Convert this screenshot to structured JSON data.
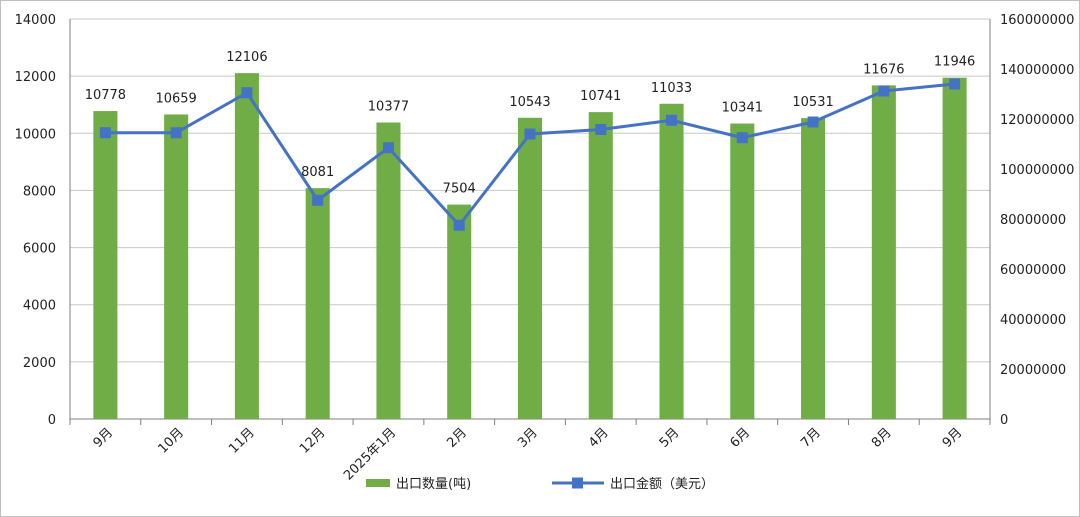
{
  "chart_data": {
    "type": "bar",
    "categories": [
      "9月",
      "10月",
      "11月",
      "12月",
      "2025年1月",
      "2月",
      "3月",
      "4月",
      "5月",
      "6月",
      "7月",
      "8月",
      "9月"
    ],
    "series": [
      {
        "name": "出口数量(吨)",
        "type": "bar",
        "axis": "left",
        "color": "#70ad47",
        "values": [
          10778,
          10659,
          12106,
          8081,
          10377,
          7504,
          10543,
          10741,
          11033,
          10341,
          10531,
          11676,
          11946
        ],
        "data_labels": [
          "10778",
          "10659",
          "12106",
          "8081",
          "10377",
          "7504",
          "10543",
          "10741",
          "11033",
          "10341",
          "10531",
          "11676",
          "11946"
        ]
      },
      {
        "name": "出口金额（美元）",
        "type": "line",
        "axis": "right",
        "color": "#4472c4",
        "marker": "square",
        "values": [
          114500000,
          114500000,
          130500000,
          87500000,
          108500000,
          77500000,
          114000000,
          115800000,
          119500000,
          112500000,
          118800000,
          131200000,
          134000000
        ]
      }
    ],
    "y_left": {
      "ylim": [
        0,
        14000
      ],
      "ticks": [
        "0",
        "2000",
        "4000",
        "6000",
        "8000",
        "10000",
        "12000",
        "14000"
      ]
    },
    "y_right": {
      "ylim": [
        0,
        160000000
      ],
      "ticks": [
        "0",
        "20000000",
        "40000000",
        "60000000",
        "80000000",
        "100000000",
        "120000000",
        "140000000",
        "160000000"
      ]
    },
    "grid": true,
    "legend": "bottom",
    "title": "",
    "xlabel": "",
    "ylabel": ""
  }
}
